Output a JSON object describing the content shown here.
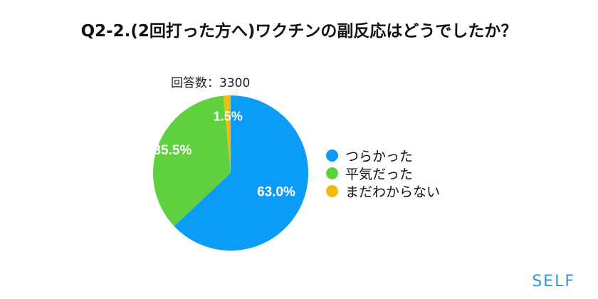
{
  "title": "Q2-2.(2回打った方へ)ワクチンの副反応はどうでしたか？",
  "respondents_label": "回答数：3300",
  "brand": "SELF",
  "chart_data": {
    "type": "pie",
    "title": "Q2-2.(2回打った方へ)ワクチンの副反応はどうでしたか？",
    "legend_position": "right",
    "slices": [
      {
        "label": "つらかった",
        "value": 63.0,
        "display": "63.0%",
        "color": "#0a9cf7"
      },
      {
        "label": "平気だった",
        "value": 35.5,
        "display": "35.5%",
        "color": "#5fd13f"
      },
      {
        "label": "まだわからない",
        "value": 1.5,
        "display": "1.5%",
        "color": "#f5b80c"
      }
    ]
  }
}
